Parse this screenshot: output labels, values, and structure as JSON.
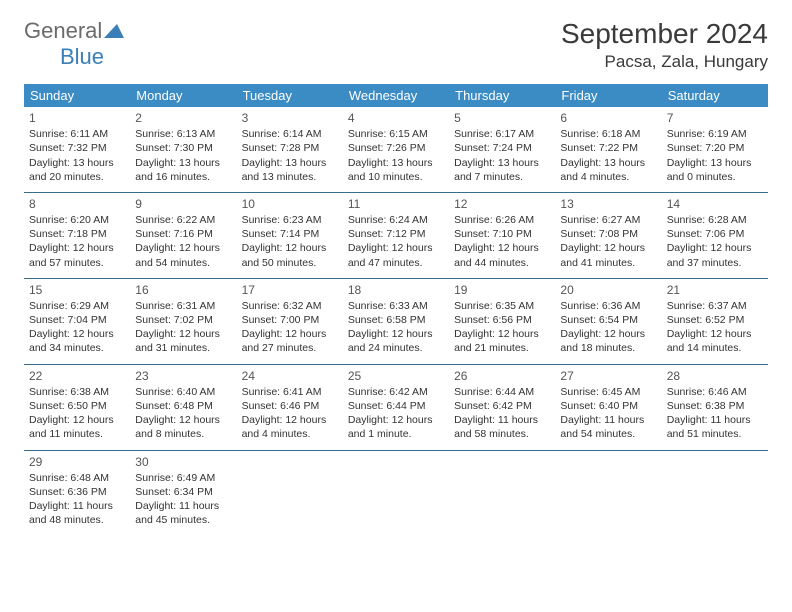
{
  "logo": {
    "main": "General",
    "sub": "Blue"
  },
  "title": "September 2024",
  "location": "Pacsa, Zala, Hungary",
  "colors": {
    "header_bg": "#3b8bc4",
    "header_text": "#ffffff",
    "row_border": "#3b6a8f",
    "logo_main": "#6b6b6b",
    "logo_sub": "#3b7fb8",
    "text": "#333333",
    "title_text": "#3a3a3a"
  },
  "weekdays": [
    "Sunday",
    "Monday",
    "Tuesday",
    "Wednesday",
    "Thursday",
    "Friday",
    "Saturday"
  ],
  "cells": [
    [
      {
        "day": "1",
        "sunrise": "6:11 AM",
        "sunset": "7:32 PM",
        "daylight": "13 hours and 20 minutes."
      },
      {
        "day": "2",
        "sunrise": "6:13 AM",
        "sunset": "7:30 PM",
        "daylight": "13 hours and 16 minutes."
      },
      {
        "day": "3",
        "sunrise": "6:14 AM",
        "sunset": "7:28 PM",
        "daylight": "13 hours and 13 minutes."
      },
      {
        "day": "4",
        "sunrise": "6:15 AM",
        "sunset": "7:26 PM",
        "daylight": "13 hours and 10 minutes."
      },
      {
        "day": "5",
        "sunrise": "6:17 AM",
        "sunset": "7:24 PM",
        "daylight": "13 hours and 7 minutes."
      },
      {
        "day": "6",
        "sunrise": "6:18 AM",
        "sunset": "7:22 PM",
        "daylight": "13 hours and 4 minutes."
      },
      {
        "day": "7",
        "sunrise": "6:19 AM",
        "sunset": "7:20 PM",
        "daylight": "13 hours and 0 minutes."
      }
    ],
    [
      {
        "day": "8",
        "sunrise": "6:20 AM",
        "sunset": "7:18 PM",
        "daylight": "12 hours and 57 minutes."
      },
      {
        "day": "9",
        "sunrise": "6:22 AM",
        "sunset": "7:16 PM",
        "daylight": "12 hours and 54 minutes."
      },
      {
        "day": "10",
        "sunrise": "6:23 AM",
        "sunset": "7:14 PM",
        "daylight": "12 hours and 50 minutes."
      },
      {
        "day": "11",
        "sunrise": "6:24 AM",
        "sunset": "7:12 PM",
        "daylight": "12 hours and 47 minutes."
      },
      {
        "day": "12",
        "sunrise": "6:26 AM",
        "sunset": "7:10 PM",
        "daylight": "12 hours and 44 minutes."
      },
      {
        "day": "13",
        "sunrise": "6:27 AM",
        "sunset": "7:08 PM",
        "daylight": "12 hours and 41 minutes."
      },
      {
        "day": "14",
        "sunrise": "6:28 AM",
        "sunset": "7:06 PM",
        "daylight": "12 hours and 37 minutes."
      }
    ],
    [
      {
        "day": "15",
        "sunrise": "6:29 AM",
        "sunset": "7:04 PM",
        "daylight": "12 hours and 34 minutes."
      },
      {
        "day": "16",
        "sunrise": "6:31 AM",
        "sunset": "7:02 PM",
        "daylight": "12 hours and 31 minutes."
      },
      {
        "day": "17",
        "sunrise": "6:32 AM",
        "sunset": "7:00 PM",
        "daylight": "12 hours and 27 minutes."
      },
      {
        "day": "18",
        "sunrise": "6:33 AM",
        "sunset": "6:58 PM",
        "daylight": "12 hours and 24 minutes."
      },
      {
        "day": "19",
        "sunrise": "6:35 AM",
        "sunset": "6:56 PM",
        "daylight": "12 hours and 21 minutes."
      },
      {
        "day": "20",
        "sunrise": "6:36 AM",
        "sunset": "6:54 PM",
        "daylight": "12 hours and 18 minutes."
      },
      {
        "day": "21",
        "sunrise": "6:37 AM",
        "sunset": "6:52 PM",
        "daylight": "12 hours and 14 minutes."
      }
    ],
    [
      {
        "day": "22",
        "sunrise": "6:38 AM",
        "sunset": "6:50 PM",
        "daylight": "12 hours and 11 minutes."
      },
      {
        "day": "23",
        "sunrise": "6:40 AM",
        "sunset": "6:48 PM",
        "daylight": "12 hours and 8 minutes."
      },
      {
        "day": "24",
        "sunrise": "6:41 AM",
        "sunset": "6:46 PM",
        "daylight": "12 hours and 4 minutes."
      },
      {
        "day": "25",
        "sunrise": "6:42 AM",
        "sunset": "6:44 PM",
        "daylight": "12 hours and 1 minute."
      },
      {
        "day": "26",
        "sunrise": "6:44 AM",
        "sunset": "6:42 PM",
        "daylight": "11 hours and 58 minutes."
      },
      {
        "day": "27",
        "sunrise": "6:45 AM",
        "sunset": "6:40 PM",
        "daylight": "11 hours and 54 minutes."
      },
      {
        "day": "28",
        "sunrise": "6:46 AM",
        "sunset": "6:38 PM",
        "daylight": "11 hours and 51 minutes."
      }
    ],
    [
      {
        "day": "29",
        "sunrise": "6:48 AM",
        "sunset": "6:36 PM",
        "daylight": "11 hours and 48 minutes."
      },
      {
        "day": "30",
        "sunrise": "6:49 AM",
        "sunset": "6:34 PM",
        "daylight": "11 hours and 45 minutes."
      },
      null,
      null,
      null,
      null,
      null
    ]
  ],
  "labels": {
    "sunrise_prefix": "Sunrise: ",
    "sunset_prefix": "Sunset: ",
    "daylight_prefix": "Daylight: "
  }
}
